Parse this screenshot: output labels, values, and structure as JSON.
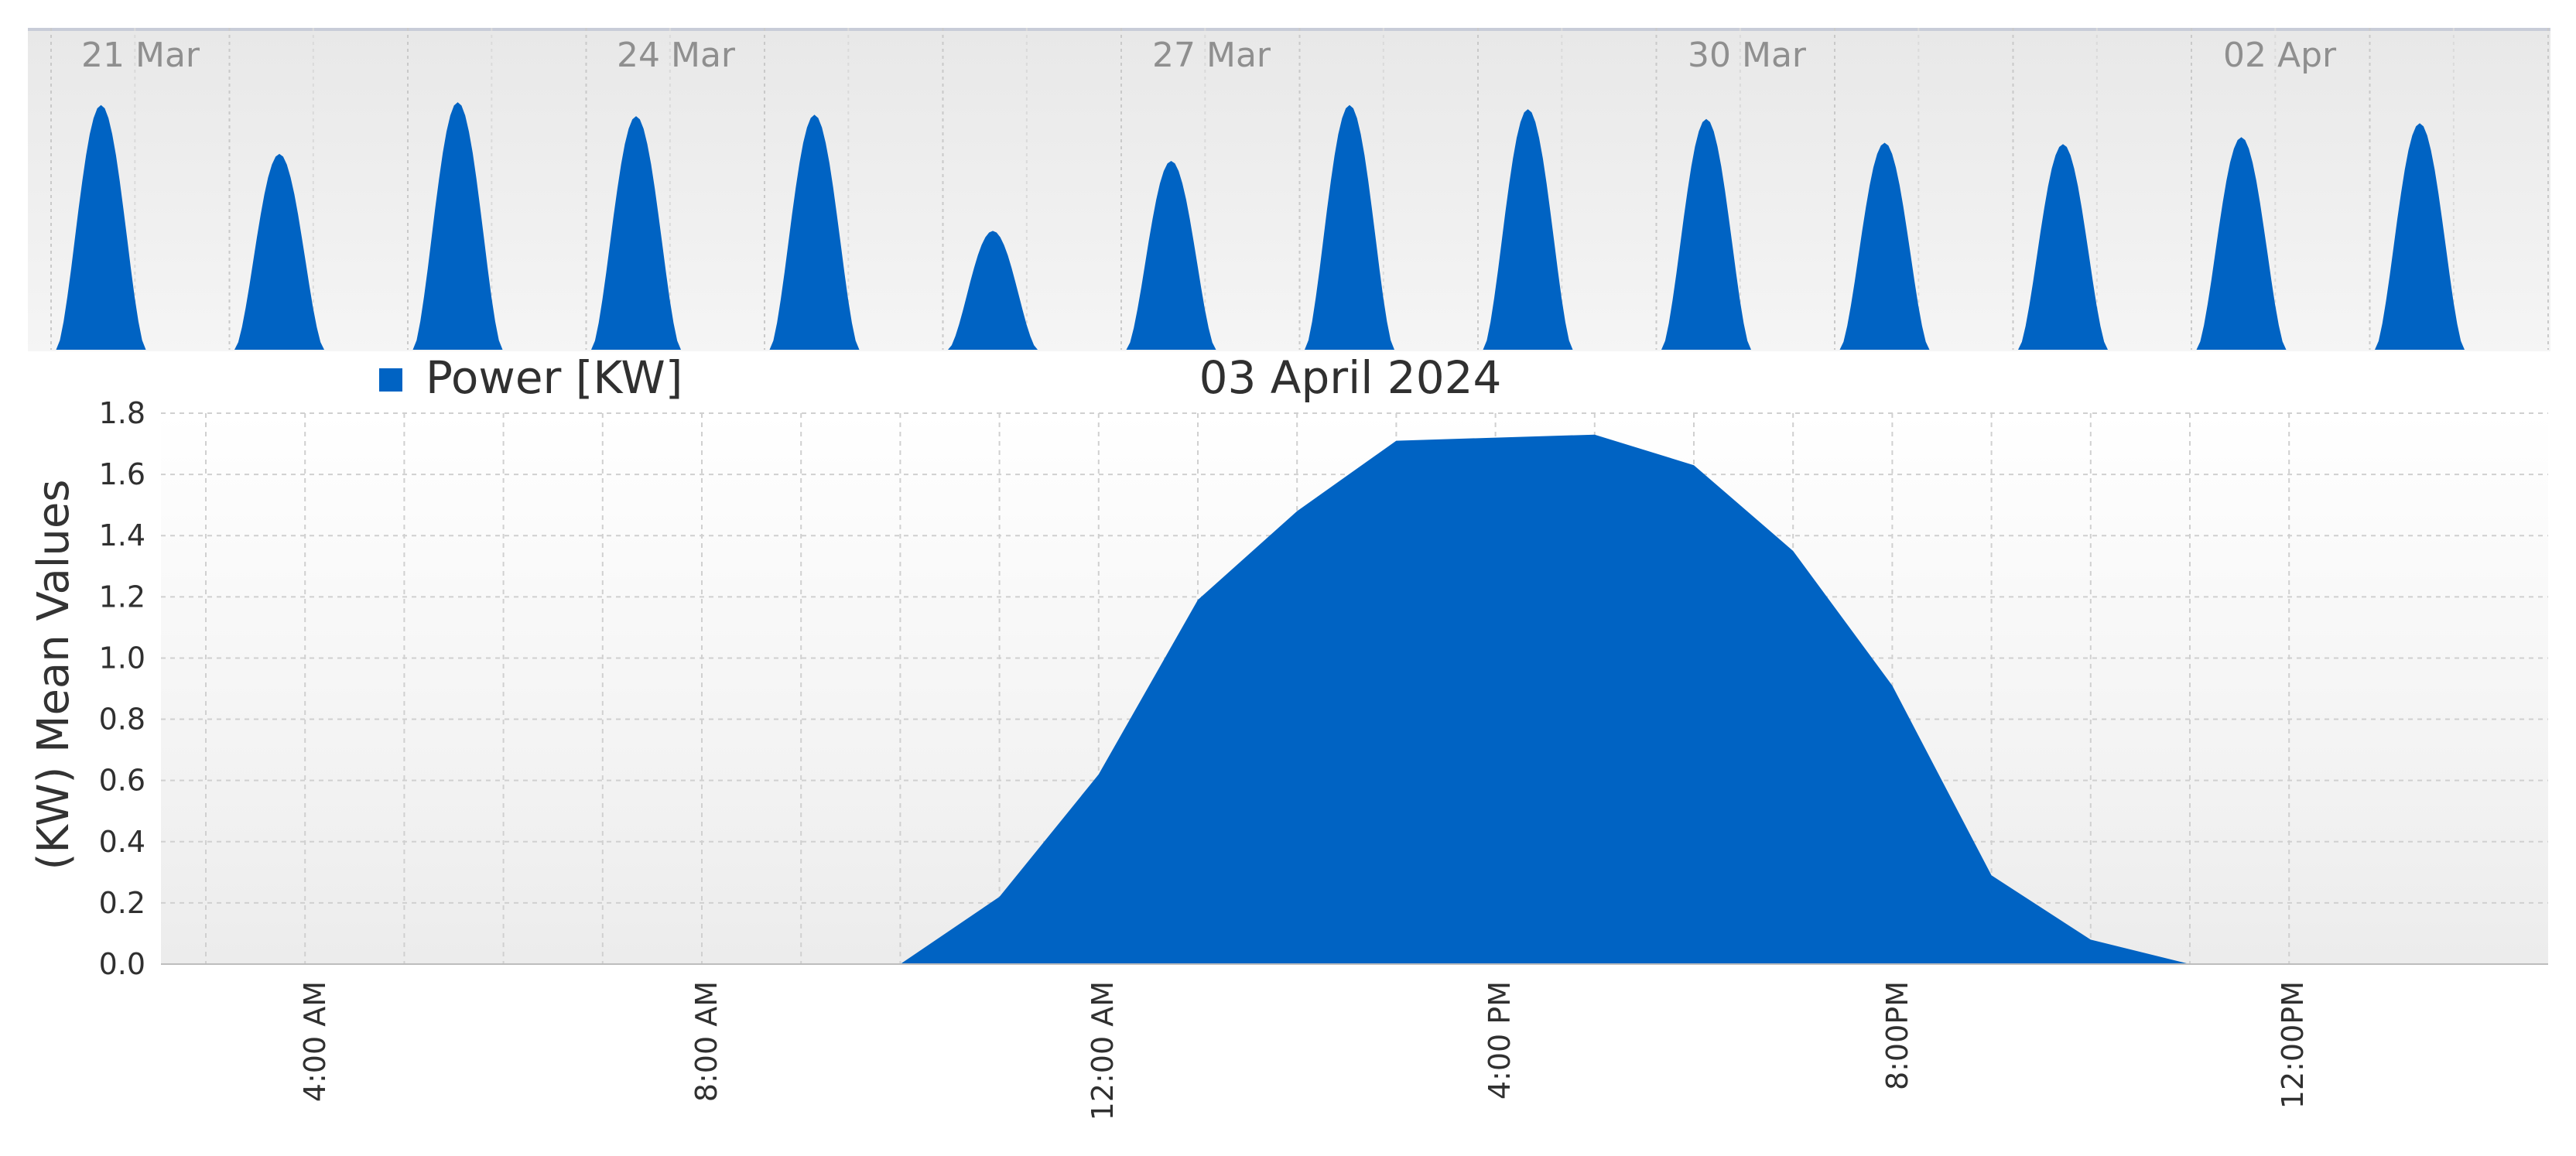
{
  "navigator": {
    "date_labels": [
      "21 Mar",
      "24 Mar",
      "27 Mar",
      "30 Mar",
      "02 Apr"
    ],
    "day_peaks": [
      1.75,
      1.4,
      1.77,
      1.67,
      1.68,
      0.85,
      1.35,
      1.75,
      1.72,
      1.65,
      1.48,
      1.47,
      1.52,
      1.62
    ]
  },
  "chart_data": {
    "type": "area",
    "title": "03 April 2024",
    "ylabel": "(KW) Mean Values",
    "xlabel": "",
    "legend": {
      "position": "top-left"
    },
    "ylim": [
      0,
      1.8
    ],
    "y_ticks": [
      "0.0",
      "0.2",
      "0.4",
      "0.6",
      "0.8",
      "1.0",
      "1.2",
      "1.4",
      "1.6",
      "1.8"
    ],
    "x_ticks": [
      "4:00 AM",
      "8:00 AM",
      "12:00 AM",
      "4:00 PM",
      "8:00PM",
      "12:00PM"
    ],
    "grid": true,
    "series": [
      {
        "name": "Power [KW]",
        "color": "#0063c3",
        "x": [
          "10:00",
          "11:00",
          "12:00",
          "13:00",
          "14:00",
          "15:00",
          "16:00",
          "17:00",
          "18:00",
          "19:00",
          "20:00",
          "21:00",
          "22:00",
          "23:00"
        ],
        "values": [
          0.0,
          0.22,
          0.62,
          1.19,
          1.48,
          1.71,
          1.72,
          1.73,
          1.63,
          1.35,
          0.91,
          0.29,
          0.08,
          0.0
        ]
      }
    ]
  }
}
